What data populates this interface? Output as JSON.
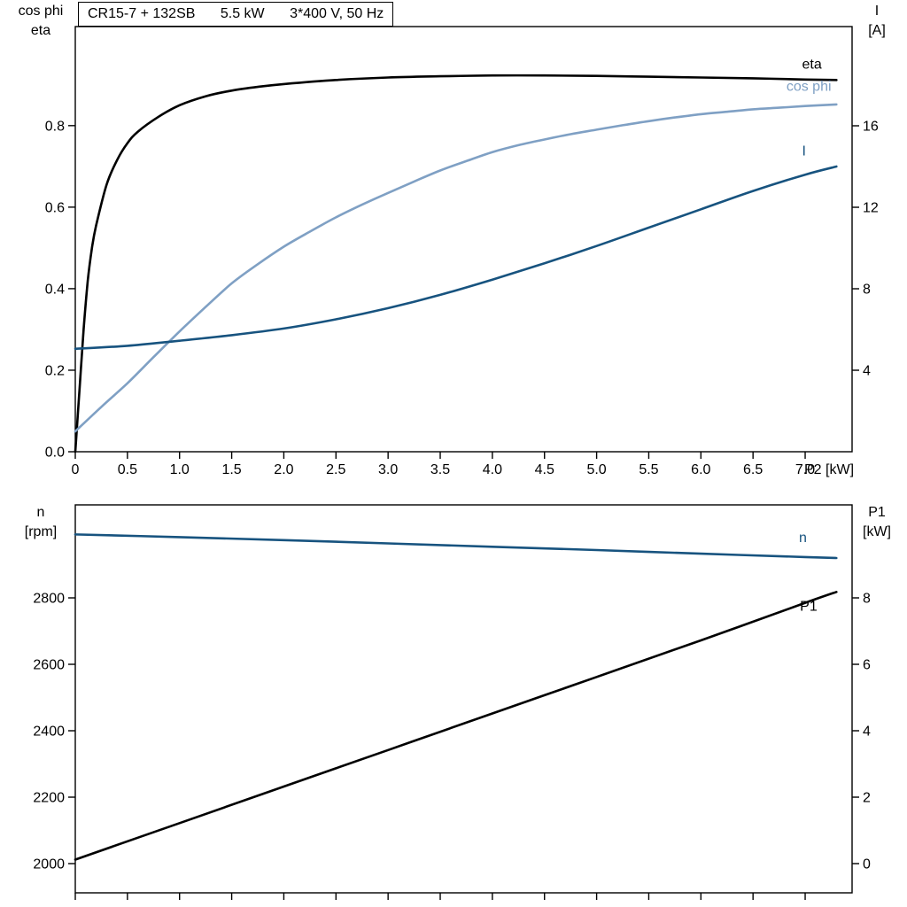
{
  "title": {
    "parts": [
      "CR15-7 + 132SB",
      "5.5 kW",
      "3*400 V, 50 Hz"
    ]
  },
  "colors": {
    "black": "#000000",
    "dark_blue": "#17537f",
    "light_blue": "#7fa0c4"
  },
  "chart_data": [
    {
      "id": "motor-efficiency-current",
      "type": "line",
      "title": "CR15-7 + 132SB 5.5 kW 3*400 V, 50 Hz",
      "grid": false,
      "legend_position": "curve-end-labels",
      "x_axis": {
        "min": 0,
        "max": 7.45,
        "tick_values": [
          0,
          0.5,
          1,
          1.5,
          2,
          2.5,
          3,
          3.5,
          4,
          4.5,
          5,
          5.5,
          6,
          6.5,
          7
        ],
        "tick_labels": [
          "0",
          "0.5",
          "1.0",
          "1.5",
          "2.0",
          "2.5",
          "3.0",
          "3.5",
          "4.0",
          "4.5",
          "5.0",
          "5.5",
          "6.0",
          "6.5",
          "7.0"
        ],
        "unit_label": "P2 [kW]",
        "show_tick_labels": true
      },
      "left_axis": {
        "header": [
          "cos phi",
          "eta"
        ],
        "min": 0,
        "max": 1.043,
        "tick_values": [
          0,
          0.2,
          0.4,
          0.6,
          0.8
        ],
        "tick_labels": [
          "0.0",
          "0.2",
          "0.4",
          "0.6",
          "0.8"
        ]
      },
      "right_axis": {
        "header": [
          "I",
          "[A]"
        ],
        "min": 0,
        "max": 20.87,
        "tick_values": [
          4,
          8,
          12,
          16
        ],
        "tick_labels": [
          "4",
          "8",
          "12",
          "16"
        ]
      },
      "series": [
        {
          "name": "eta",
          "label": "eta",
          "axis": "left",
          "color": "black",
          "label_pos": {
            "x": 6.97,
            "y": 0.94
          },
          "points": [
            [
              0,
              0
            ],
            [
              0.04,
              0.15
            ],
            [
              0.08,
              0.3
            ],
            [
              0.12,
              0.42
            ],
            [
              0.16,
              0.5
            ],
            [
              0.2,
              0.555
            ],
            [
              0.3,
              0.655
            ],
            [
              0.4,
              0.715
            ],
            [
              0.5,
              0.757
            ],
            [
              0.6,
              0.785
            ],
            [
              0.8,
              0.822
            ],
            [
              1,
              0.85
            ],
            [
              1.25,
              0.872
            ],
            [
              1.5,
              0.886
            ],
            [
              1.75,
              0.895
            ],
            [
              2,
              0.902
            ],
            [
              2.5,
              0.912
            ],
            [
              3,
              0.918
            ],
            [
              3.5,
              0.921
            ],
            [
              4,
              0.923
            ],
            [
              4.5,
              0.923
            ],
            [
              5,
              0.922
            ],
            [
              5.5,
              0.92
            ],
            [
              6,
              0.918
            ],
            [
              6.5,
              0.916
            ],
            [
              7,
              0.913
            ],
            [
              7.3,
              0.912
            ]
          ]
        },
        {
          "name": "cos_phi",
          "label": "cos phi",
          "axis": "left",
          "color": "light_blue",
          "label_pos": {
            "x": 6.82,
            "y": 0.885
          },
          "points": [
            [
              0,
              0.05
            ],
            [
              0.25,
              0.11
            ],
            [
              0.5,
              0.168
            ],
            [
              0.75,
              0.232
            ],
            [
              1,
              0.295
            ],
            [
              1.25,
              0.355
            ],
            [
              1.5,
              0.413
            ],
            [
              1.75,
              0.46
            ],
            [
              2,
              0.503
            ],
            [
              2.25,
              0.54
            ],
            [
              2.5,
              0.575
            ],
            [
              2.75,
              0.606
            ],
            [
              3,
              0.635
            ],
            [
              3.25,
              0.663
            ],
            [
              3.5,
              0.69
            ],
            [
              3.75,
              0.713
            ],
            [
              4,
              0.735
            ],
            [
              4.25,
              0.752
            ],
            [
              4.5,
              0.766
            ],
            [
              4.75,
              0.779
            ],
            [
              5,
              0.79
            ],
            [
              5.25,
              0.801
            ],
            [
              5.5,
              0.811
            ],
            [
              5.75,
              0.82
            ],
            [
              6,
              0.828
            ],
            [
              6.25,
              0.834
            ],
            [
              6.5,
              0.84
            ],
            [
              6.75,
              0.844
            ],
            [
              7,
              0.848
            ],
            [
              7.3,
              0.852
            ]
          ]
        },
        {
          "name": "I",
          "label": "I",
          "axis": "right",
          "color": "dark_blue",
          "label_pos": {
            "x": 6.97,
            "y": 14.55
          },
          "points": [
            [
              0,
              5.05
            ],
            [
              0.5,
              5.2
            ],
            [
              1,
              5.45
            ],
            [
              1.5,
              5.72
            ],
            [
              2,
              6.05
            ],
            [
              2.5,
              6.5
            ],
            [
              3,
              7.05
            ],
            [
              3.5,
              7.7
            ],
            [
              4,
              8.45
            ],
            [
              4.5,
              9.25
            ],
            [
              5,
              10.1
            ],
            [
              5.5,
              11
            ],
            [
              6,
              11.9
            ],
            [
              6.5,
              12.8
            ],
            [
              7,
              13.6
            ],
            [
              7.3,
              14
            ]
          ]
        }
      ]
    },
    {
      "id": "speed-input-power",
      "type": "line",
      "grid": false,
      "legend_position": "curve-end-labels",
      "x_axis": {
        "min": 0,
        "max": 7.45,
        "tick_values": [
          0,
          0.5,
          1,
          1.5,
          2,
          2.5,
          3,
          3.5,
          4,
          4.5,
          5,
          5.5,
          6,
          6.5,
          7
        ],
        "tick_labels": [],
        "unit_label": "",
        "show_tick_labels": false
      },
      "left_axis": {
        "header": [
          "n",
          "[rpm]"
        ],
        "min": 1912,
        "max": 3080,
        "tick_values": [
          2000,
          2200,
          2400,
          2600,
          2800
        ],
        "tick_labels": [
          "2000",
          "2200",
          "2400",
          "2600",
          "2800"
        ]
      },
      "right_axis": {
        "header": [
          "P1",
          "[kW]"
        ],
        "min": -0.88,
        "max": 10.8,
        "tick_values": [
          0,
          2,
          4,
          6,
          8
        ],
        "tick_labels": [
          "0",
          "2",
          "4",
          "6",
          "8"
        ]
      },
      "series": [
        {
          "name": "n",
          "label": "n",
          "axis": "left",
          "color": "dark_blue",
          "label_pos": {
            "x": 6.94,
            "y": 2968
          },
          "points": [
            [
              0,
              2991
            ],
            [
              1,
              2983
            ],
            [
              2,
              2974
            ],
            [
              3,
              2964
            ],
            [
              4,
              2954
            ],
            [
              5,
              2944
            ],
            [
              6,
              2933
            ],
            [
              7,
              2923
            ],
            [
              7.3,
              2920
            ]
          ]
        },
        {
          "name": "P1",
          "label": "P1",
          "axis": "right",
          "color": "black",
          "label_pos": {
            "x": 6.95,
            "y": 7.62
          },
          "points": [
            [
              0,
              0.12
            ],
            [
              1,
              1.22
            ],
            [
              2,
              2.32
            ],
            [
              3,
              3.42
            ],
            [
              4,
              4.52
            ],
            [
              5,
              5.62
            ],
            [
              6,
              6.72
            ],
            [
              7,
              7.85
            ],
            [
              7.3,
              8.18
            ]
          ]
        }
      ]
    }
  ]
}
